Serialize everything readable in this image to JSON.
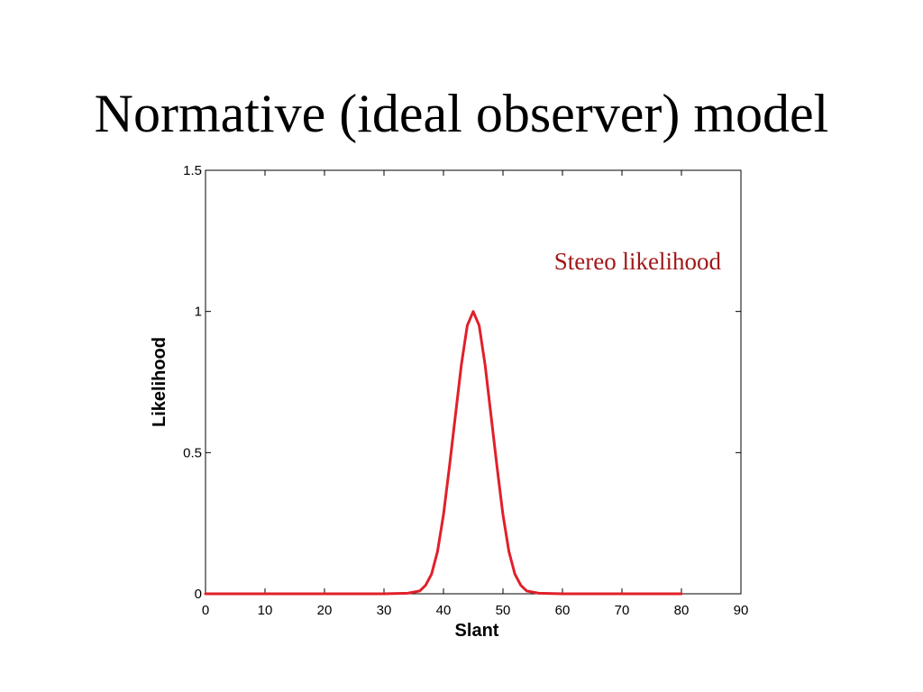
{
  "slide": {
    "title": "Normative (ideal observer) model"
  },
  "chart_data": {
    "type": "line",
    "xlabel": "Slant",
    "ylabel": "Likelihood",
    "xlim": [
      0,
      90
    ],
    "ylim": [
      0,
      1.5
    ],
    "xticks": [
      0,
      10,
      20,
      30,
      40,
      50,
      60,
      70,
      80,
      90
    ],
    "yticks": [
      0,
      0.5,
      1,
      1.5
    ],
    "xtick_labels": [
      "0",
      "10",
      "20",
      "30",
      "40",
      "50",
      "60",
      "70",
      "80",
      "90"
    ],
    "ytick_labels": [
      "0",
      "0.5",
      "1",
      "1.5"
    ],
    "grid": false,
    "series": [
      {
        "color": "#e0202a",
        "x": [
          0,
          10,
          20,
          30,
          34,
          36,
          37,
          38,
          39,
          40,
          41,
          42,
          43,
          44,
          45,
          46,
          47,
          48,
          49,
          50,
          51,
          52,
          53,
          54,
          56,
          60,
          70,
          80
        ],
        "y": [
          0,
          0,
          0,
          0,
          0.002,
          0.01,
          0.03,
          0.07,
          0.15,
          0.28,
          0.45,
          0.63,
          0.81,
          0.95,
          1.0,
          0.95,
          0.81,
          0.63,
          0.45,
          0.28,
          0.15,
          0.07,
          0.03,
          0.01,
          0.002,
          0,
          0,
          0
        ]
      }
    ],
    "annotations": [
      {
        "text": "Stereo likelihood",
        "color": "#a01818",
        "position": "top-right"
      }
    ]
  }
}
